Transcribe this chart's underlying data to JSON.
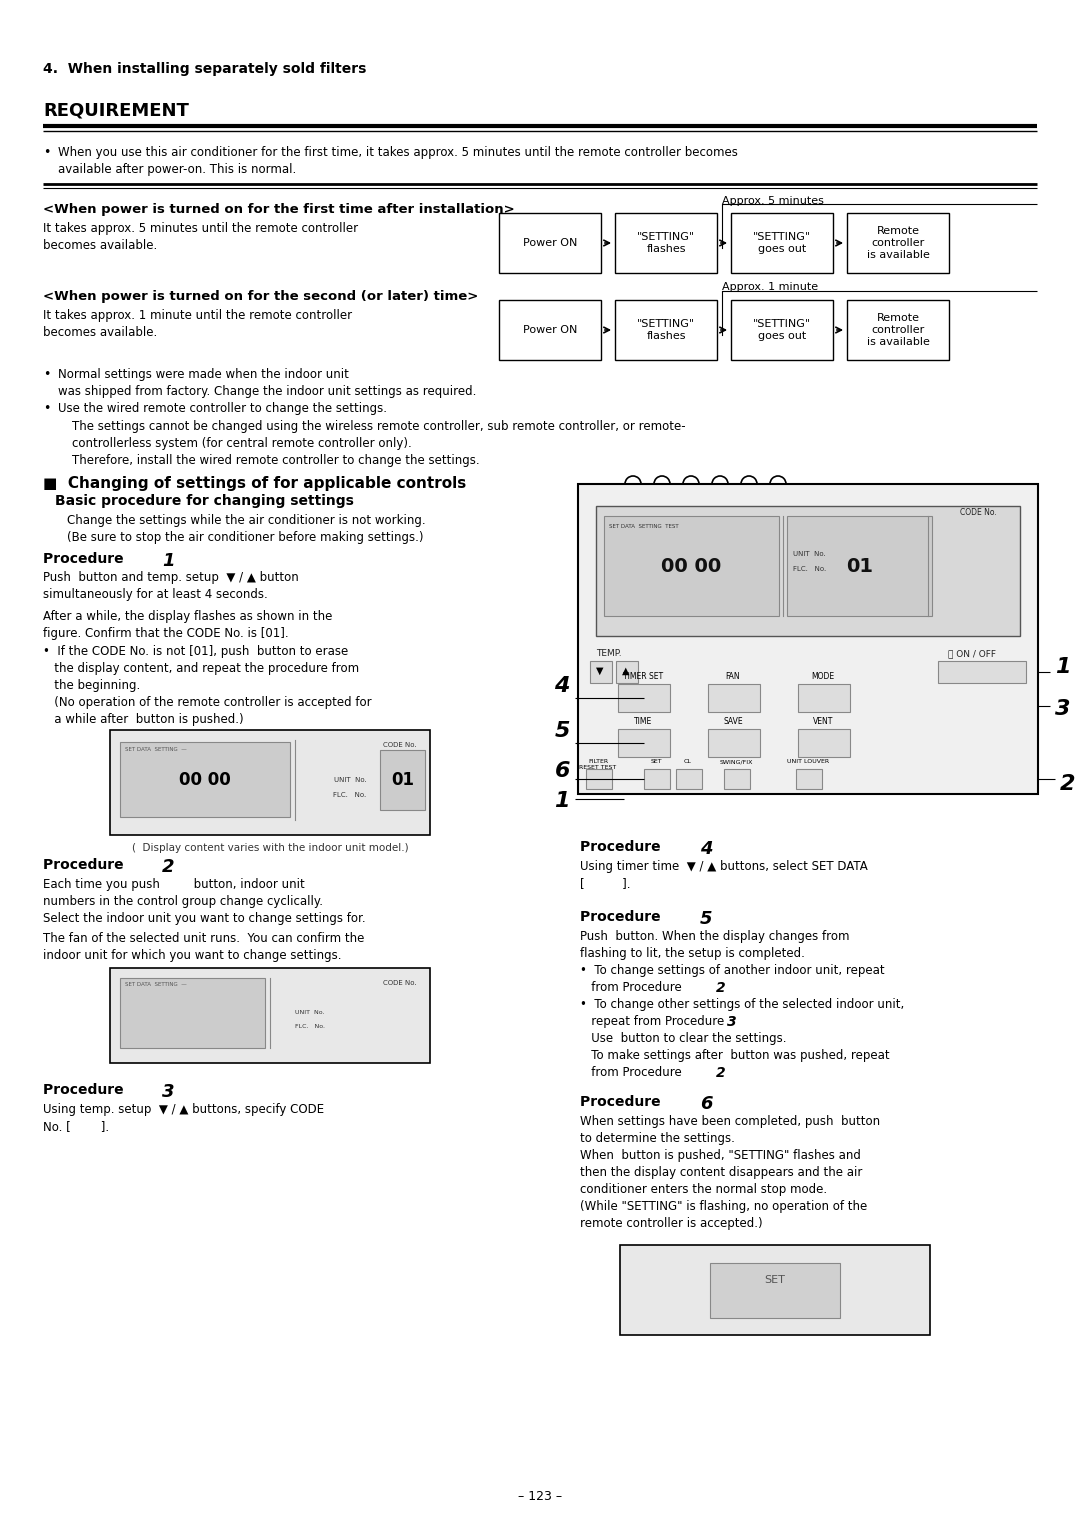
{
  "bg_color": "#ffffff",
  "page_title": "4.  When installing separately sold filters",
  "section_title": "REQUIREMENT",
  "page_number": "– 123 –",
  "flow1_heading": "<When power is turned on for the first time after installation>",
  "flow1_left": "It takes approx. 5 minutes until the remote controller\nbecomes available.",
  "flow1_approx": "Approx. 5 minutes",
  "flow1_boxes": [
    "Power ON",
    "\"SETTING\"\nflashes",
    "\"SETTING\"\ngoes out",
    "Remote\ncontroller\nis available"
  ],
  "flow2_heading": "<When power is turned on for the second (or later) time>",
  "flow2_left": "It takes approx. 1 minute until the remote controller\nbecomes available.",
  "flow2_approx": "Approx. 1 minute",
  "flow2_boxes": [
    "Power ON",
    "\"SETTING\"\nflashes",
    "\"SETTING\"\ngoes out",
    "Remote\ncontroller\nis available"
  ],
  "bullet1": "When you use this air conditioner for the first time, it takes approx. 5 minutes until the remote controller becomes",
  "bullet1b": "available after power-on. This is normal.",
  "bullet2a": "Normal settings were made when the indoor unit",
  "bullet2b": "was shipped from factory. Change the indoor unit settings as required.",
  "bullet3": "Use the wired remote controller to change the settings.",
  "indent1": "The settings cannot be changed using the wireless remote controller, sub remote controller, or remote-",
  "indent2": "controllerless system (for central remote controller only).",
  "indent3": "Therefore, install the wired remote controller to change the settings.",
  "section2": "■  Changing of settings of for applicable controls",
  "subsec": "Basic procedure for changing settings",
  "change1": "Change the settings while the air conditioner is not working.",
  "change2": "(Be sure to stop the air conditioner before making settings.)",
  "p1h": "Procedure ",
  "p1n": "1",
  "p1l1": "Push  button and temp. setup  ▼ / ▲ button",
  "p1l2": "simultaneously for at least 4 seconds.",
  "p1l3": "After a while, the display flashes as shown in the",
  "p1l4": "figure. Confirm that the CODE No. is [01].",
  "p1b1": "•  If the CODE No. is not [01], push  button to erase",
  "p1b2": "   the display content, and repeat the procedure from",
  "p1b3": "   the beginning.",
  "p1b4": "   (No operation of the remote controller is accepted for",
  "p1b5": "   a while after  button is pushed.)",
  "disp_cap": "(  Display content varies with the indoor unit model.)",
  "p2h": "Procedure ",
  "p2n": "2",
  "p2l1": "Each time you push         button, indoor unit",
  "p2l2": "numbers in the control group change cyclically.",
  "p2l3": "Select the indoor unit you want to change settings for.",
  "p2l4": "The fan of the selected unit runs.  You can confirm the",
  "p2l5": "indoor unit for which you want to change settings.",
  "p3h": "Procedure ",
  "p3n": "3",
  "p3l1": "Using temp. setup  ▼ / ▲ buttons, specify CODE",
  "p3l2": "No. [        ].",
  "p4h": "Procedure ",
  "p4n": "4",
  "p4l1": "Using timer time  ▼ / ▲ buttons, select SET DATA",
  "p4l2": "[          ].",
  "p5h": "Procedure ",
  "p5n": "5",
  "p5l1": "Push  button. When the display changes from",
  "p5l2": "flashing to lit, the setup is completed.",
  "p5b1": "•  To change settings of another indoor unit, repeat",
  "p5b2": "   from Procedure ",
  "p5b2n": "2",
  "p5b3": "•  To change other settings of the selected indoor unit,",
  "p5b4": "   repeat from Procedure ",
  "p5b4n": "3",
  "p5b5": "   Use  button to clear the settings.",
  "p5b6": "   To make settings after  button was pushed, repeat",
  "p5b7": "   from Procedure ",
  "p5b7n": "2",
  "p6h": "Procedure ",
  "p6n": "6",
  "p6l1": "When settings have been completed, push  button",
  "p6l2": "to determine the settings.",
  "p6l3": "When  button is pushed, \"SETTING\" flashes and",
  "p6l4": "then the display content disappears and the air",
  "p6l5": "conditioner enters the normal stop mode.",
  "p6l6": "(While \"SETTING\" is flashing, no operation of the",
  "p6l7": "remote controller is accepted.)"
}
